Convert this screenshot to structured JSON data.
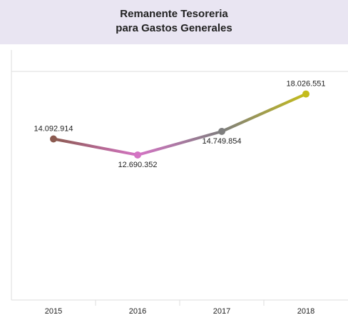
{
  "chart_data": {
    "type": "line",
    "title": [
      "Remanente Tesoreria",
      "para Gastos Generales"
    ],
    "categories": [
      "2015",
      "2016",
      "2017",
      "2018"
    ],
    "series": [
      {
        "values": [
          14092914,
          12690352,
          14749854,
          18026551
        ],
        "value_labels": [
          "14.092.914",
          "12.690.352",
          "14.749.854",
          "18.026.551"
        ],
        "colors": [
          "#8b5a50",
          "#d474c4",
          "#7e7e7e",
          "#c4bc1c"
        ]
      }
    ],
    "ylim": [
      0,
      20000000
    ]
  }
}
